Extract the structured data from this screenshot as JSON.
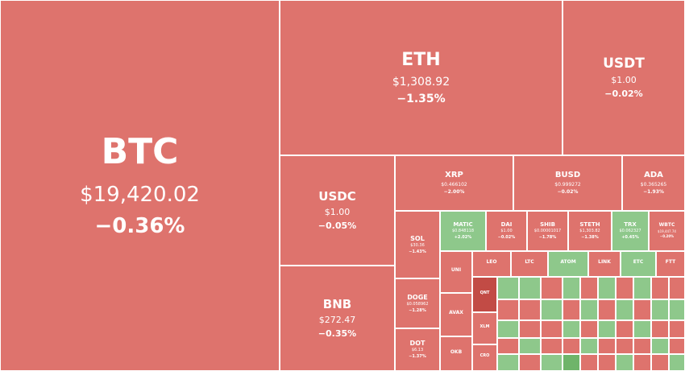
{
  "colors": {
    "negative": "#de736d",
    "positive": "#8ec88b",
    "strong_negative": "#c24b45",
    "strong_positive": "#6fb46a",
    "border": "#ffffff"
  },
  "coins": {
    "btc": {
      "symbol": "BTC",
      "price": "$19,420.02",
      "change": "−0.36%"
    },
    "eth": {
      "symbol": "ETH",
      "price": "$1,308.92",
      "change": "−1.35%"
    },
    "usdt": {
      "symbol": "USDT",
      "price": "$1.00",
      "change": "−0.02%"
    },
    "usdc": {
      "symbol": "USDC",
      "price": "$1.00",
      "change": "−0.05%"
    },
    "bnb": {
      "symbol": "BNB",
      "price": "$272.47",
      "change": "−0.35%"
    },
    "xrp": {
      "symbol": "XRP",
      "price": "$0.466102",
      "change": "−2.00%"
    },
    "busd": {
      "symbol": "BUSD",
      "price": "$0.999272",
      "change": "−0.02%"
    },
    "ada": {
      "symbol": "ADA",
      "price": "$0.365265",
      "change": "−1.93%"
    },
    "sol": {
      "symbol": "SOL",
      "price": "$30.36",
      "change": "−1.43%"
    },
    "doge": {
      "symbol": "DOGE",
      "price": "$0.058962",
      "change": "−1.28%"
    },
    "dot": {
      "symbol": "DOT",
      "price": "$6.13",
      "change": "−1.37%"
    },
    "matic": {
      "symbol": "MATIC",
      "price": "$0.848118",
      "change": "+2.02%"
    },
    "dai": {
      "symbol": "DAI",
      "price": "$1.00",
      "change": "−0.02%"
    },
    "shib": {
      "symbol": "SHIB",
      "price": "$0.00001017",
      "change": "−1.78%"
    },
    "steth": {
      "symbol": "STETH",
      "price": "$1,303.82",
      "change": "−1.38%"
    },
    "trx": {
      "symbol": "TRX",
      "price": "$0.062327",
      "change": "+0.45%"
    },
    "wbtc": {
      "symbol": "WBTC",
      "price": "$19,447.74",
      "change": "−0.20%"
    },
    "uni": {
      "symbol": "UNI",
      "price": "",
      "change": ""
    },
    "leo": {
      "symbol": "LEO",
      "price": "",
      "change": ""
    },
    "ltc": {
      "symbol": "LTC",
      "price": "",
      "change": ""
    },
    "atom": {
      "symbol": "ATOM",
      "price": "",
      "change": ""
    },
    "link": {
      "symbol": "LINK",
      "price": "",
      "change": ""
    },
    "etc": {
      "symbol": "ETC",
      "price": "",
      "change": ""
    },
    "ftt": {
      "symbol": "FTT",
      "price": "",
      "change": ""
    },
    "avax": {
      "symbol": "AVAX",
      "price": "",
      "change": ""
    },
    "okb": {
      "symbol": "OKB",
      "price": "",
      "change": ""
    },
    "qnt": {
      "symbol": "QNT",
      "price": "",
      "change": ""
    },
    "xlm": {
      "symbol": "XLM",
      "price": "",
      "change": ""
    },
    "cro": {
      "symbol": "CRO",
      "price": "",
      "change": ""
    }
  }
}
